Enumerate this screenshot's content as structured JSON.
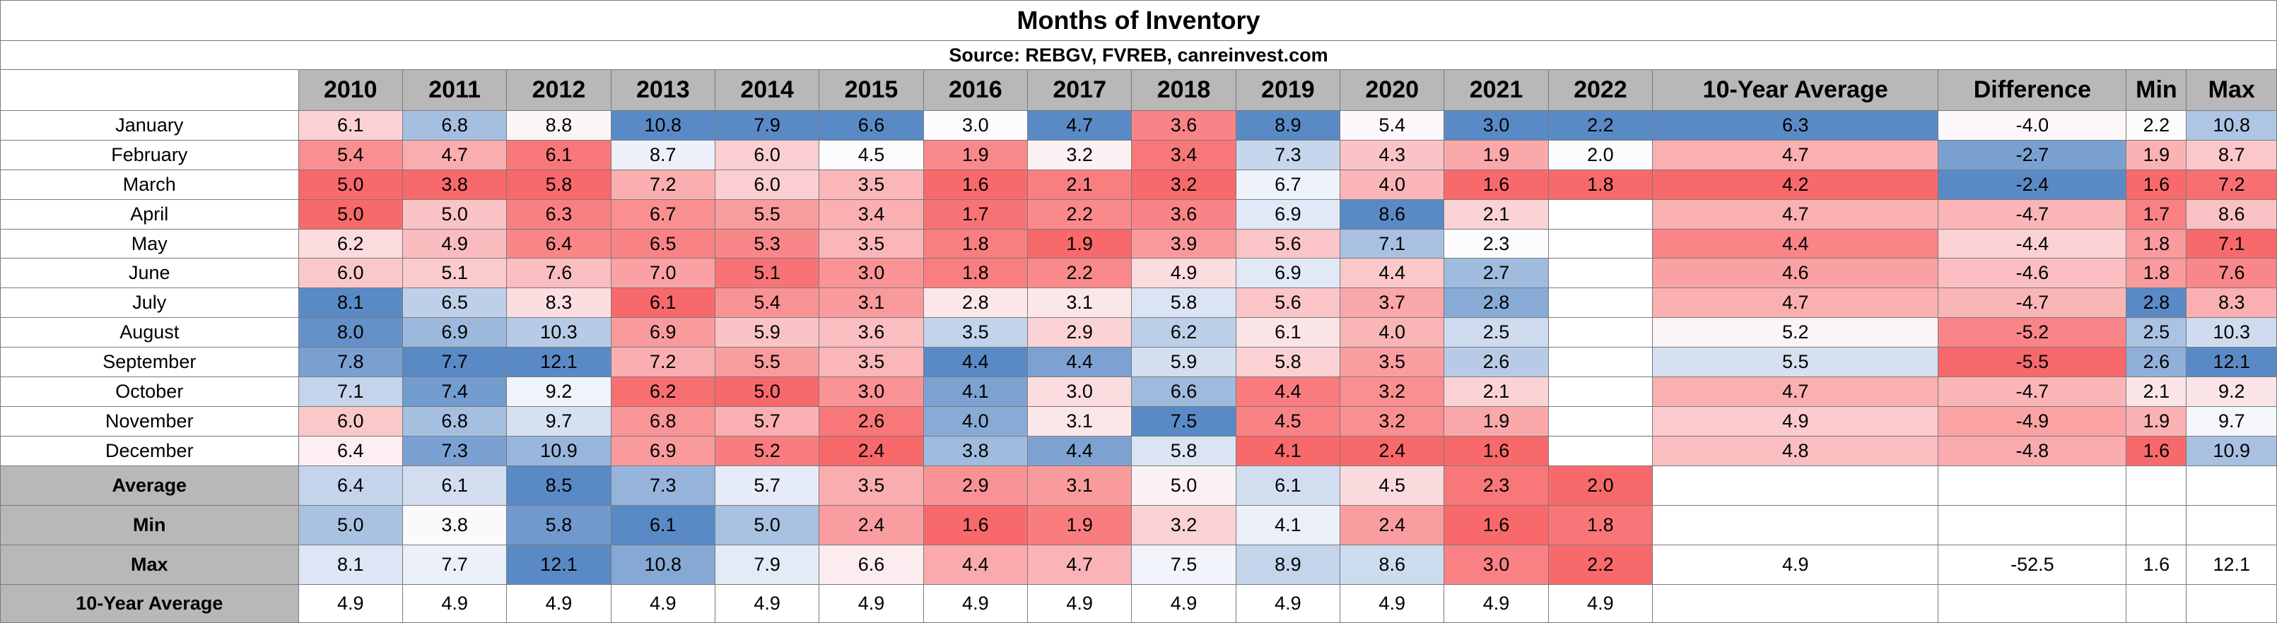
{
  "chart_data": {
    "type": "table",
    "title": "Months of Inventory",
    "subtitle": "Source: REBGV, FVREB, canreinvest.com",
    "columns": [
      "2010",
      "2011",
      "2012",
      "2013",
      "2014",
      "2015",
      "2016",
      "2017",
      "2018",
      "2019",
      "2020",
      "2021",
      "2022",
      "10-Year Average",
      "Difference",
      "Min",
      "Max"
    ],
    "rows": [
      {
        "label": "January",
        "values": [
          "6.1",
          "6.8",
          "8.8",
          "10.8",
          "7.9",
          "6.6",
          "3.0",
          "4.7",
          "3.6",
          "8.9",
          "5.4",
          "3.0",
          "2.2",
          "6.3",
          "-4.0",
          "2.2",
          "10.8"
        ]
      },
      {
        "label": "February",
        "values": [
          "5.4",
          "4.7",
          "6.1",
          "8.7",
          "6.0",
          "4.5",
          "1.9",
          "3.2",
          "3.4",
          "7.3",
          "4.3",
          "1.9",
          "2.0",
          "4.7",
          "-2.7",
          "1.9",
          "8.7"
        ]
      },
      {
        "label": "March",
        "values": [
          "5.0",
          "3.8",
          "5.8",
          "7.2",
          "6.0",
          "3.5",
          "1.6",
          "2.1",
          "3.2",
          "6.7",
          "4.0",
          "1.6",
          "1.8",
          "4.2",
          "-2.4",
          "1.6",
          "7.2"
        ]
      },
      {
        "label": "April",
        "values": [
          "5.0",
          "5.0",
          "6.3",
          "6.7",
          "5.5",
          "3.4",
          "1.7",
          "2.2",
          "3.6",
          "6.9",
          "8.6",
          "2.1",
          "",
          "4.7",
          "-4.7",
          "1.7",
          "8.6"
        ]
      },
      {
        "label": "May",
        "values": [
          "6.2",
          "4.9",
          "6.4",
          "6.5",
          "5.3",
          "3.5",
          "1.8",
          "1.9",
          "3.9",
          "5.6",
          "7.1",
          "2.3",
          "",
          "4.4",
          "-4.4",
          "1.8",
          "7.1"
        ]
      },
      {
        "label": "June",
        "values": [
          "6.0",
          "5.1",
          "7.6",
          "7.0",
          "5.1",
          "3.0",
          "1.8",
          "2.2",
          "4.9",
          "6.9",
          "4.4",
          "2.7",
          "",
          "4.6",
          "-4.6",
          "1.8",
          "7.6"
        ]
      },
      {
        "label": "July",
        "values": [
          "8.1",
          "6.5",
          "8.3",
          "6.1",
          "5.4",
          "3.1",
          "2.8",
          "3.1",
          "5.8",
          "5.6",
          "3.7",
          "2.8",
          "",
          "4.7",
          "-4.7",
          "2.8",
          "8.3"
        ]
      },
      {
        "label": "August",
        "values": [
          "8.0",
          "6.9",
          "10.3",
          "6.9",
          "5.9",
          "3.6",
          "3.5",
          "2.9",
          "6.2",
          "6.1",
          "4.0",
          "2.5",
          "",
          "5.2",
          "-5.2",
          "2.5",
          "10.3"
        ]
      },
      {
        "label": "September",
        "values": [
          "7.8",
          "7.7",
          "12.1",
          "7.2",
          "5.5",
          "3.5",
          "4.4",
          "4.4",
          "5.9",
          "5.8",
          "3.5",
          "2.6",
          "",
          "5.5",
          "-5.5",
          "2.6",
          "12.1"
        ]
      },
      {
        "label": "October",
        "values": [
          "7.1",
          "7.4",
          "9.2",
          "6.2",
          "5.0",
          "3.0",
          "4.1",
          "3.0",
          "6.6",
          "4.4",
          "3.2",
          "2.1",
          "",
          "4.7",
          "-4.7",
          "2.1",
          "9.2"
        ]
      },
      {
        "label": "November",
        "values": [
          "6.0",
          "6.8",
          "9.7",
          "6.8",
          "5.7",
          "2.6",
          "4.0",
          "3.1",
          "7.5",
          "4.5",
          "3.2",
          "1.9",
          "",
          "4.9",
          "-4.9",
          "1.9",
          "9.7"
        ]
      },
      {
        "label": "December",
        "values": [
          "6.4",
          "7.3",
          "10.9",
          "6.9",
          "5.2",
          "2.4",
          "3.8",
          "4.4",
          "5.8",
          "4.1",
          "2.4",
          "1.6",
          "",
          "4.8",
          "-4.8",
          "1.6",
          "10.9"
        ]
      }
    ],
    "summary": [
      {
        "label": "Average",
        "values": [
          "6.4",
          "6.1",
          "8.5",
          "7.3",
          "5.7",
          "3.5",
          "2.9",
          "3.1",
          "5.0",
          "6.1",
          "4.5",
          "2.3",
          "2.0",
          "",
          "",
          "",
          ""
        ]
      },
      {
        "label": "Min",
        "values": [
          "5.0",
          "3.8",
          "5.8",
          "6.1",
          "5.0",
          "2.4",
          "1.6",
          "1.9",
          "3.2",
          "4.1",
          "2.4",
          "1.6",
          "1.8",
          "",
          "",
          "",
          ""
        ]
      },
      {
        "label": "Max",
        "values": [
          "8.1",
          "7.7",
          "12.1",
          "10.8",
          "7.9",
          "6.6",
          "4.4",
          "4.7",
          "7.5",
          "8.9",
          "8.6",
          "3.0",
          "2.2",
          "4.9",
          "-52.5",
          "1.6",
          "12.1"
        ]
      },
      {
        "label": "10-Year Average",
        "values": [
          "4.9",
          "4.9",
          "4.9",
          "4.9",
          "4.9",
          "4.9",
          "4.9",
          "4.9",
          "4.9",
          "4.9",
          "4.9",
          "4.9",
          "4.9",
          "",
          "",
          "",
          ""
        ]
      }
    ],
    "colors": {
      "header_fill": "#b8b8b8",
      "low_strong": "#f8696b",
      "mid": "#fcfcff",
      "high_strong": "#5a8ac6"
    }
  }
}
